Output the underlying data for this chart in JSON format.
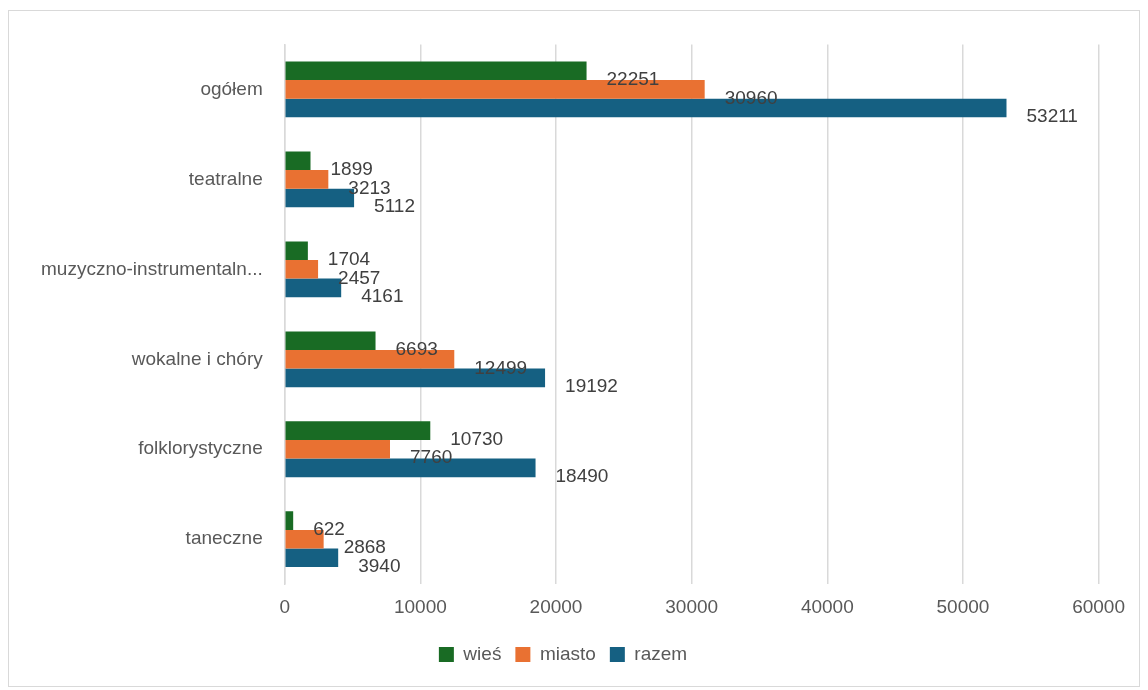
{
  "chart_data": {
    "type": "bar",
    "orientation": "horizontal",
    "categories": [
      "ogółem",
      "teatralne",
      "muzyczno-instrumentaln...",
      "wokalne i chóry",
      "folklorystyczne",
      "taneczne"
    ],
    "series": [
      {
        "name": "wieś",
        "color": "#196b24",
        "values": [
          22251,
          1899,
          1704,
          6693,
          10730,
          622
        ]
      },
      {
        "name": "miasto",
        "color": "#e97132",
        "values": [
          30960,
          3213,
          2457,
          12499,
          7760,
          2868
        ]
      },
      {
        "name": "razem",
        "color": "#156082",
        "values": [
          53211,
          5112,
          4161,
          19192,
          18490,
          3940
        ]
      }
    ],
    "xlim": [
      0,
      60000
    ],
    "xticks": [
      0,
      10000,
      20000,
      30000,
      40000,
      50000,
      60000
    ],
    "grid": "x",
    "legend": "bottom",
    "data_labels": true
  }
}
